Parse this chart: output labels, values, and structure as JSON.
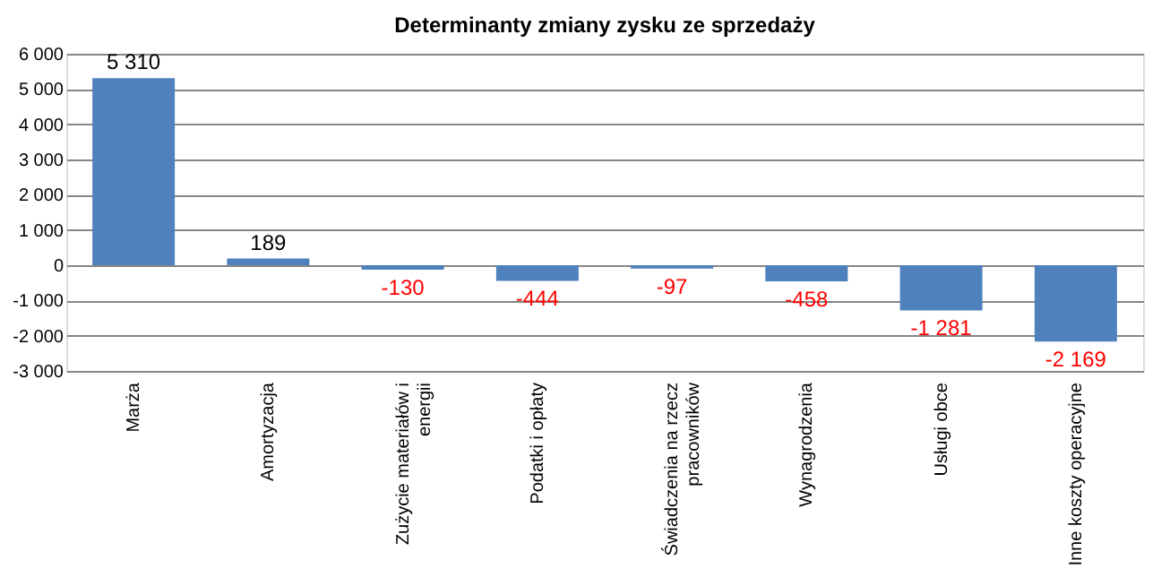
{
  "chart_data": {
    "type": "bar",
    "title": "Determinanty zmiany zysku ze sprzedaży",
    "categories": [
      "Marża",
      "Amortyzacja",
      "Zużycie materiałów i energii",
      "Podatki i opłaty",
      "Świadczenia na rzecz pracowników",
      "Wynagrodzenia",
      "Usługi obce",
      "Inne koszty operacyjne"
    ],
    "values": [
      5310,
      189,
      -130,
      -444,
      -97,
      -458,
      -1281,
      -2169
    ],
    "value_labels": [
      "5 310",
      "189",
      "-130",
      "-444",
      "-97",
      "-458",
      "-1 281",
      "-2 169"
    ],
    "color": "#4f81bd",
    "ylim": [
      -3000,
      6000
    ],
    "yticks": [
      {
        "value": -3000,
        "label": "-3 000"
      },
      {
        "value": -2000,
        "label": "-2 000"
      },
      {
        "value": -1000,
        "label": "-1 000"
      },
      0,
      {
        "value": 1000,
        "label": "1 000"
      },
      {
        "value": 2000,
        "label": "2 000"
      },
      {
        "value": 3000,
        "label": "3 000"
      },
      {
        "value": 4000,
        "label": "4 000"
      },
      {
        "value": 5000,
        "label": "5 000"
      },
      {
        "value": 6000,
        "label": "6 000"
      }
    ],
    "grid": "y"
  }
}
